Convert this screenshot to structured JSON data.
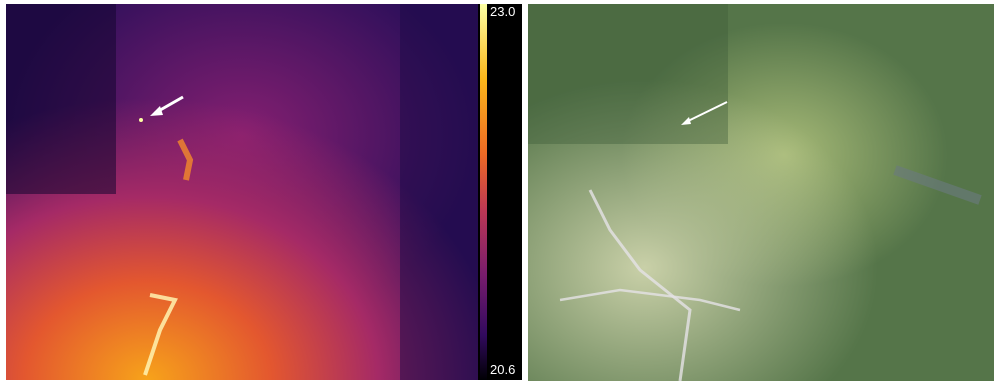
{
  "colorbar": {
    "max_label": "23.0",
    "min_label": "20.6"
  }
}
